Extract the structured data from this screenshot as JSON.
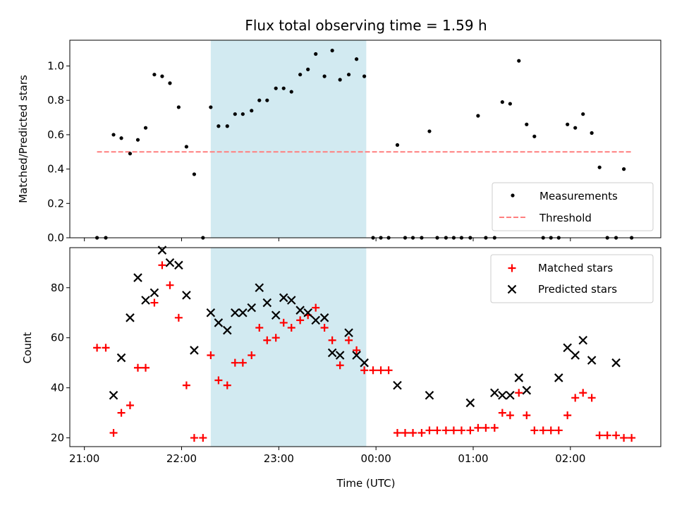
{
  "title": "Flux total observing time = 1.59 h",
  "xlabel": "Time (UTC)",
  "x_ticks": [
    "21:00",
    "22:00",
    "23:00",
    "00:00",
    "01:00",
    "02:00"
  ],
  "x_tick_hours": [
    21,
    22,
    23,
    24,
    25,
    26
  ],
  "xlim": [
    20.85,
    26.93
  ],
  "shaded_interval": [
    22.3,
    23.9
  ],
  "colors": {
    "shade": "#add8e6",
    "measurement": "#000000",
    "threshold": "#ff7f7f",
    "matched": "#ff0000",
    "predicted": "#000000"
  },
  "chart_data": [
    {
      "type": "scatter",
      "ylabel": "Matched/Predicted stars",
      "ylim": [
        0,
        1.15
      ],
      "y_ticks": [
        "0.0",
        "0.2",
        "0.4",
        "0.6",
        "0.8",
        "1.0"
      ],
      "y_tick_values": [
        0,
        0.2,
        0.4,
        0.6,
        0.8,
        1.0
      ],
      "legend": {
        "position": "lower right",
        "entries": [
          "Measurements",
          "Threshold"
        ]
      },
      "threshold": {
        "name": "Threshold",
        "value": 0.5,
        "x_range": [
          21.13,
          26.63
        ]
      },
      "series": [
        {
          "name": "Measurements",
          "x": [
            21.13,
            21.22,
            21.3,
            21.38,
            21.47,
            21.55,
            21.63,
            21.72,
            21.8,
            21.88,
            21.97,
            22.05,
            22.13,
            22.22,
            22.3,
            22.38,
            22.47,
            22.55,
            22.63,
            22.72,
            22.8,
            22.88,
            22.97,
            23.05,
            23.13,
            23.22,
            23.3,
            23.38,
            23.47,
            23.55,
            23.63,
            23.72,
            23.8,
            23.88,
            23.97,
            24.05,
            24.13,
            24.22,
            24.3,
            24.38,
            24.47,
            24.55,
            24.63,
            24.72,
            24.8,
            24.88,
            24.97,
            25.05,
            25.13,
            25.22,
            25.3,
            25.38,
            25.47,
            25.55,
            25.63,
            25.72,
            25.8,
            25.88,
            25.97,
            26.05,
            26.13,
            26.22,
            26.3,
            26.38,
            26.47,
            26.55,
            26.63
          ],
          "y": [
            0,
            0,
            0.6,
            0.58,
            0.49,
            0.57,
            0.64,
            0.95,
            0.94,
            0.9,
            0.76,
            0.53,
            0.37,
            0,
            0.76,
            0.65,
            0.65,
            0.72,
            0.72,
            0.74,
            0.8,
            0.8,
            0.87,
            0.87,
            0.85,
            0.95,
            0.98,
            1.07,
            0.94,
            1.09,
            0.92,
            0.95,
            1.04,
            0.94,
            0,
            0,
            0,
            0.54,
            0,
            0,
            0,
            0.62,
            0,
            0,
            0,
            0,
            0,
            0.71,
            0,
            0,
            0.79,
            0.78,
            1.03,
            0.66,
            0.59,
            0,
            0,
            0,
            0.66,
            0.64,
            0.72,
            0.61,
            0.41,
            0,
            0,
            0.4,
            0
          ]
        }
      ]
    },
    {
      "type": "scatter",
      "ylabel": "Count",
      "ylim": [
        16.5,
        96
      ],
      "y_ticks": [
        "20",
        "40",
        "60",
        "80"
      ],
      "y_tick_values": [
        20,
        40,
        60,
        80
      ],
      "legend": {
        "position": "upper right",
        "entries": [
          "Matched stars",
          "Predicted stars"
        ]
      },
      "series": [
        {
          "name": "Matched stars",
          "marker": "+",
          "x": [
            21.13,
            21.22,
            21.3,
            21.38,
            21.47,
            21.55,
            21.63,
            21.72,
            21.8,
            21.88,
            21.97,
            22.05,
            22.13,
            22.22,
            22.3,
            22.38,
            22.47,
            22.55,
            22.63,
            22.72,
            22.8,
            22.88,
            22.97,
            23.05,
            23.13,
            23.22,
            23.3,
            23.38,
            23.47,
            23.55,
            23.63,
            23.72,
            23.8,
            23.88,
            23.97,
            24.05,
            24.13,
            24.22,
            24.3,
            24.38,
            24.47,
            24.55,
            24.63,
            24.72,
            24.8,
            24.88,
            24.97,
            25.05,
            25.13,
            25.22,
            25.3,
            25.38,
            25.47,
            25.55,
            25.63,
            25.72,
            25.8,
            25.88,
            25.97,
            26.05,
            26.13,
            26.22,
            26.3,
            26.38,
            26.47,
            26.55,
            26.63
          ],
          "y": [
            56,
            56,
            22,
            30,
            33,
            48,
            48,
            74,
            89,
            81,
            68,
            41,
            20,
            20,
            53,
            43,
            41,
            50,
            50,
            53,
            64,
            59,
            60,
            66,
            64,
            67,
            69,
            72,
            64,
            59,
            49,
            59,
            55,
            47,
            47,
            47,
            47,
            22,
            22,
            22,
            22,
            23,
            23,
            23,
            23,
            23,
            23,
            24,
            24,
            24,
            30,
            29,
            38,
            29,
            23,
            23,
            23,
            23,
            29,
            36,
            38,
            36,
            21,
            21,
            21,
            20,
            20
          ]
        },
        {
          "name": "Predicted stars",
          "marker": "x",
          "x": [
            21.3,
            21.38,
            21.47,
            21.55,
            21.63,
            21.72,
            21.8,
            21.88,
            21.97,
            22.05,
            22.13,
            22.3,
            22.38,
            22.47,
            22.55,
            22.63,
            22.72,
            22.8,
            22.88,
            22.97,
            23.05,
            23.13,
            23.22,
            23.3,
            23.38,
            23.47,
            23.55,
            23.63,
            23.72,
            23.8,
            23.88,
            24.22,
            24.55,
            24.97,
            25.22,
            25.3,
            25.38,
            25.47,
            25.55,
            25.88,
            25.97,
            26.05,
            26.13,
            26.22,
            26.47
          ],
          "y": [
            37,
            52,
            68,
            84,
            75,
            78,
            95,
            90,
            89,
            77,
            55,
            70,
            66,
            63,
            70,
            70,
            72,
            80,
            74,
            69,
            76,
            75,
            71,
            70,
            67,
            68,
            54,
            53,
            62,
            53,
            50,
            41,
            37,
            34,
            38,
            37,
            37,
            44,
            39,
            44,
            56,
            53,
            59,
            51,
            50
          ]
        }
      ]
    }
  ]
}
